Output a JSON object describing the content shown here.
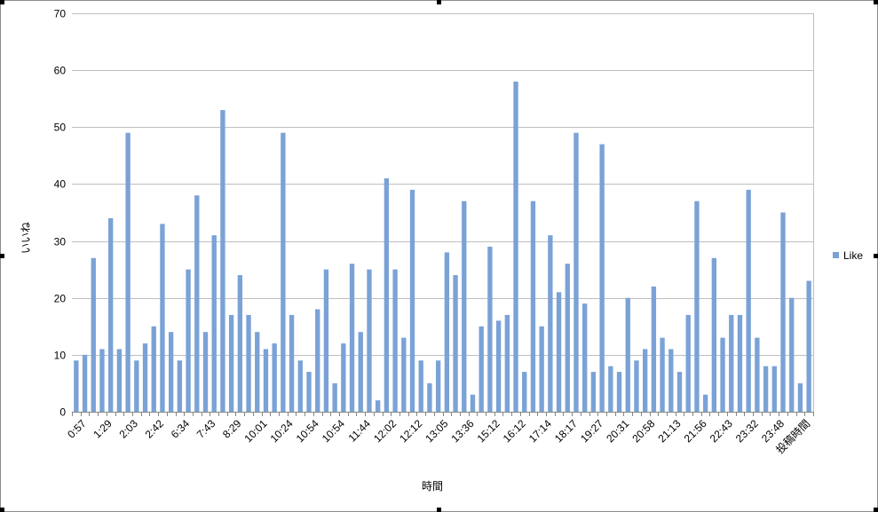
{
  "chart_data": {
    "type": "bar",
    "title": "",
    "xlabel": "時間",
    "ylabel": "いいね",
    "ylim": [
      0,
      70
    ],
    "yticks": [
      0,
      10,
      20,
      30,
      40,
      50,
      60,
      70
    ],
    "grid": true,
    "legend_position": "right",
    "bar_color": "#7aa2d6",
    "x_tick_labels": [
      "0:57",
      "1:29",
      "2:03",
      "2:42",
      "6:34",
      "7:43",
      "8:29",
      "10:01",
      "10:24",
      "10:54",
      "10:54",
      "11:44",
      "12:02",
      "12:12",
      "13:05",
      "13:36",
      "15:12",
      "16:12",
      "17:14",
      "18:17",
      "19:27",
      "20:31",
      "20:58",
      "21:13",
      "21:56",
      "22:43",
      "23:32",
      "23:48",
      "投稿時間"
    ],
    "series": [
      {
        "name": "Like",
        "values": [
          9,
          10,
          27,
          11,
          34,
          11,
          49,
          9,
          12,
          15,
          33,
          14,
          9,
          25,
          38,
          14,
          31,
          53,
          17,
          24,
          17,
          14,
          11,
          12,
          49,
          17,
          9,
          7,
          18,
          25,
          5,
          12,
          26,
          14,
          25,
          2,
          41,
          25,
          13,
          39,
          9,
          5,
          9,
          28,
          24,
          37,
          3,
          15,
          29,
          16,
          17,
          58,
          7,
          37,
          15,
          31,
          21,
          26,
          49,
          19,
          7,
          47,
          8,
          7,
          20,
          9,
          11,
          22,
          13,
          11,
          7,
          17,
          37,
          3,
          27,
          13,
          17,
          17,
          39,
          13,
          8,
          8,
          35,
          20,
          5,
          23
        ]
      }
    ]
  }
}
